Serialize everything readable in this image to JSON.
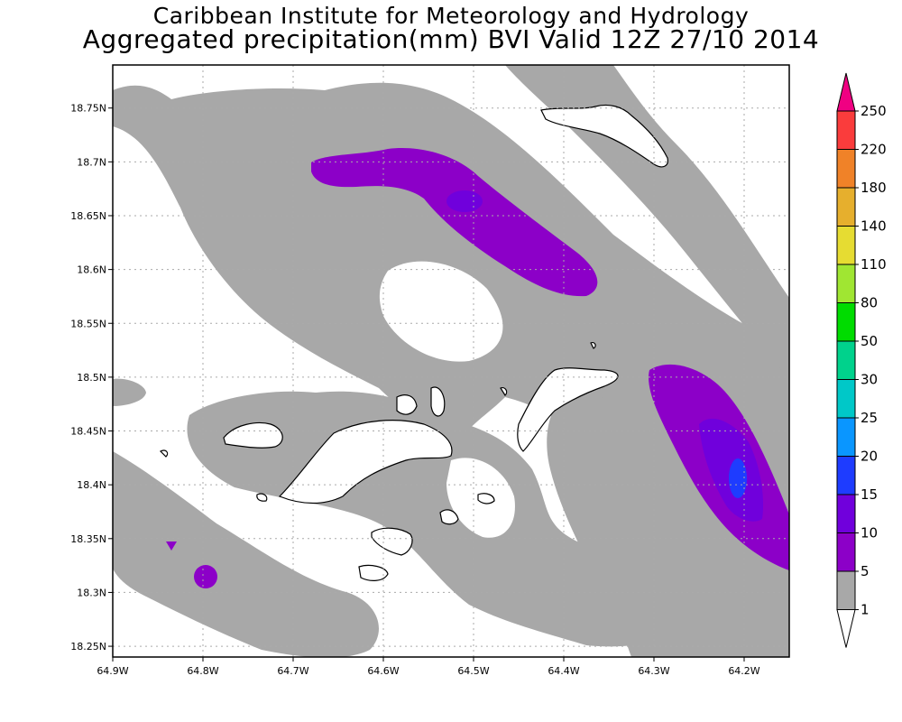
{
  "title": {
    "line1": "Caribbean Institute for Meteorology and Hydrology",
    "line2": "Aggregated precipitation(mm) BVI Valid 12Z 27/10 2014"
  },
  "map": {
    "lat_labels": [
      "18.75N",
      "18.7N",
      "18.65N",
      "18.6N",
      "18.55N",
      "18.5N",
      "18.45N",
      "18.4N",
      "18.35N",
      "18.3N",
      "18.25N"
    ],
    "lon_labels": [
      "64.9W",
      "64.8W",
      "64.7W",
      "64.6W",
      "64.5W",
      "64.4W",
      "64.3W",
      "64.2W"
    ],
    "lat_range": [
      18.24,
      18.79
    ],
    "lon_range": [
      -64.9,
      -64.15
    ],
    "grid": true
  },
  "colorbar": {
    "labels": [
      "1",
      "5",
      "10",
      "15",
      "20",
      "25",
      "30",
      "50",
      "80",
      "110",
      "140",
      "180",
      "220",
      "250"
    ],
    "colors": [
      "#a8a8a8",
      "#8c00c8",
      "#7000dc",
      "#1e3cff",
      "#0a96ff",
      "#00c8c8",
      "#00d28c",
      "#00dc00",
      "#a0e632",
      "#e6dc32",
      "#e6af2d",
      "#f08228",
      "#fa3c3c",
      "#f00082"
    ]
  },
  "legend_colors": {
    "gray": "#a8a8a8",
    "purple": "#8c00c8",
    "violet": "#7000dc",
    "blue": "#1e3cff"
  }
}
